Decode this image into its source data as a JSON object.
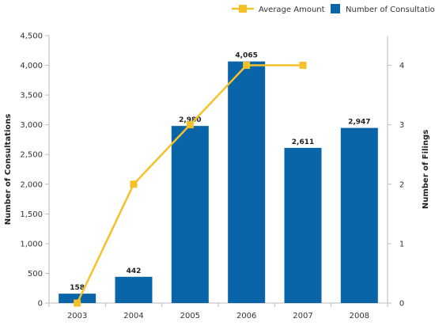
{
  "chart_data": {
    "type": "bar",
    "categories": [
      "2003",
      "2004",
      "2005",
      "2006",
      "2007",
      "2008"
    ],
    "series": [
      {
        "name": "Number of Consultations",
        "type": "bar",
        "axis": "left",
        "color": "#0a64a8",
        "values": [
          158,
          442,
          2980,
          4065,
          2611,
          2947
        ],
        "labels": [
          "158",
          "442",
          "2,980",
          "4,065",
          "2,611",
          "2,947"
        ]
      },
      {
        "name": "Average Amount",
        "type": "line",
        "axis": "right",
        "color": "#f5c12a",
        "values": [
          0,
          2,
          3,
          4,
          4,
          null
        ]
      }
    ],
    "ylabel": "Number of Consultations",
    "y2label": "Number of Filings",
    "ylim": [
      0,
      4500
    ],
    "y2lim": [
      0,
      4.5
    ],
    "yticks": [
      0,
      500,
      1000,
      1500,
      2000,
      2500,
      3000,
      3500,
      4000,
      4500
    ],
    "yticklabels": [
      "0",
      "500",
      "1,000",
      "1,500",
      "2,000",
      "2,500",
      "3,000",
      "3,500",
      "4,000",
      "4,500"
    ],
    "y2ticks": [
      0,
      1,
      2,
      3,
      4
    ],
    "y2ticklabels": [
      "0",
      "1",
      "2",
      "3",
      "4"
    ],
    "grid": false,
    "legend": "top-right"
  }
}
